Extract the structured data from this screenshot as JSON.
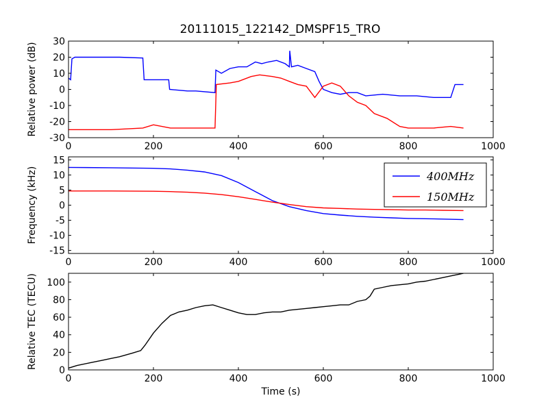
{
  "title": "20111015_122142_DMSPF15_TRO",
  "chart_data": [
    {
      "type": "line",
      "title": "20111015_122142_DMSPF15_TRO",
      "ylabel": "Relative power (dB)",
      "xlabel": "",
      "xlim": [
        0,
        1000
      ],
      "ylim": [
        -30,
        30
      ],
      "xticks": [
        "0",
        "200",
        "400",
        "600",
        "800",
        "1000"
      ],
      "yticks": [
        "-30",
        "-20",
        "-10",
        "0",
        "10",
        "20",
        "30"
      ],
      "grid": false,
      "series": [
        {
          "color": "#0000ff",
          "x": [
            0,
            5,
            8,
            15,
            60,
            120,
            175,
            178,
            200,
            236,
            238,
            280,
            300,
            345,
            347,
            360,
            380,
            400,
            420,
            440,
            455,
            470,
            490,
            510,
            520,
            521,
            525,
            540,
            560,
            580,
            590,
            600,
            620,
            640,
            660,
            680,
            700,
            740,
            780,
            820,
            860,
            880,
            900,
            910,
            915,
            930
          ],
          "y": [
            7,
            6,
            19,
            20,
            20,
            20,
            19.5,
            6,
            6,
            6,
            0,
            -1,
            -1,
            -2,
            12,
            10,
            13,
            14,
            14,
            17,
            16,
            17,
            18,
            16,
            14,
            24,
            14,
            15,
            13,
            11,
            5,
            0,
            -2,
            -3,
            -2,
            -2,
            -4,
            -3,
            -4,
            -4,
            -5,
            -5,
            -5,
            3,
            3,
            3
          ]
        },
        {
          "color": "#ff0000",
          "x": [
            0,
            100,
            175,
            200,
            240,
            340,
            345,
            348,
            380,
            400,
            430,
            450,
            480,
            500,
            520,
            540,
            560,
            580,
            600,
            620,
            640,
            660,
            680,
            700,
            720,
            750,
            780,
            800,
            830,
            860,
            900,
            930
          ],
          "y": [
            -25,
            -25,
            -24,
            -22,
            -24,
            -24,
            -24,
            3,
            4,
            5,
            8,
            9,
            8,
            7,
            5,
            3,
            2,
            -5,
            2,
            4,
            2,
            -4,
            -8,
            -10,
            -15,
            -18,
            -23,
            -24,
            -24,
            -24,
            -23,
            -24
          ]
        }
      ]
    },
    {
      "type": "line",
      "ylabel": "Frequency (kHz)",
      "xlabel": "",
      "xlim": [
        0,
        1000
      ],
      "ylim": [
        -16,
        16
      ],
      "xticks": [
        "0",
        "200",
        "400",
        "600",
        "800",
        "1000"
      ],
      "yticks": [
        "-15",
        "-10",
        "-5",
        "0",
        "5",
        "10",
        "15"
      ],
      "grid": false,
      "legend": "top-right",
      "series": [
        {
          "name": "400MHz",
          "color": "#0000ff",
          "x": [
            0,
            100,
            200,
            240,
            280,
            320,
            360,
            400,
            440,
            480,
            520,
            560,
            600,
            640,
            680,
            720,
            760,
            800,
            840,
            880,
            930
          ],
          "y": [
            12.5,
            12.4,
            12.2,
            12,
            11.6,
            11,
            9.8,
            7.5,
            4.5,
            1.5,
            -0.5,
            -1.8,
            -2.8,
            -3.3,
            -3.7,
            -4,
            -4.2,
            -4.4,
            -4.5,
            -4.6,
            -4.8
          ]
        },
        {
          "name": "150MHz",
          "color": "#ff0000",
          "x": [
            0,
            100,
            200,
            240,
            280,
            320,
            360,
            400,
            440,
            480,
            520,
            560,
            600,
            640,
            680,
            720,
            760,
            800,
            840,
            880,
            930
          ],
          "y": [
            4.7,
            4.7,
            4.6,
            4.5,
            4.3,
            4,
            3.5,
            2.8,
            1.9,
            1,
            0.2,
            -0.5,
            -0.9,
            -1.1,
            -1.3,
            -1.4,
            -1.5,
            -1.6,
            -1.6,
            -1.7,
            -1.8
          ]
        }
      ]
    },
    {
      "type": "line",
      "ylabel": "Relative TEC (TECU)",
      "xlabel": "Time (s)",
      "xlim": [
        0,
        1000
      ],
      "ylim": [
        0,
        110
      ],
      "xticks": [
        "0",
        "200",
        "400",
        "600",
        "800",
        "1000"
      ],
      "yticks": [
        "0",
        "20",
        "40",
        "60",
        "80",
        "100"
      ],
      "grid": false,
      "series": [
        {
          "color": "#000000",
          "x": [
            0,
            20,
            50,
            80,
            100,
            120,
            150,
            170,
            180,
            200,
            220,
            240,
            260,
            280,
            300,
            320,
            340,
            360,
            380,
            400,
            420,
            440,
            460,
            480,
            500,
            520,
            540,
            560,
            580,
            600,
            620,
            640,
            660,
            680,
            700,
            710,
            720,
            740,
            760,
            780,
            800,
            820,
            840,
            860,
            880,
            900,
            920,
            930
          ],
          "y": [
            2,
            5,
            8,
            11,
            13,
            15,
            19,
            22,
            28,
            42,
            53,
            62,
            66,
            68,
            71,
            73,
            74,
            71,
            68,
            65,
            63,
            63,
            65,
            66,
            66,
            68,
            69,
            70,
            71,
            72,
            73,
            74,
            74,
            78,
            80,
            84,
            92,
            94,
            96,
            97,
            98,
            100,
            101,
            103,
            105,
            107,
            109,
            110
          ]
        }
      ]
    }
  ]
}
